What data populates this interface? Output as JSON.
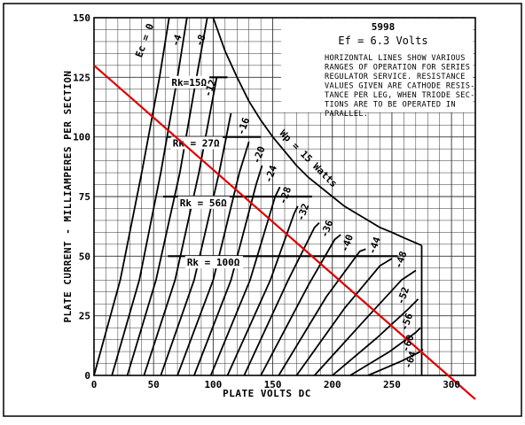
{
  "chart_data": {
    "type": "line",
    "tube_type": "5998",
    "heater": "Ef = 6.3 Volts",
    "xlabel": "PLATE VOLTS DC",
    "ylabel": "PLATE CURRENT - MILLIAMPERES PER SECTION",
    "xlim": [
      0,
      320
    ],
    "ylim": [
      0,
      150
    ],
    "x_ticks": [
      0,
      50,
      100,
      150,
      200,
      250,
      300
    ],
    "y_ticks": [
      0,
      25,
      50,
      75,
      100,
      125,
      150
    ],
    "grid": true,
    "note_lines": [
      "HORIZONTAL LINES SHOW VARIOUS",
      "RANGES OF OPERATION FOR SERIES",
      "REGULATOR SERVICE. RESISTANCE",
      "VALUES GIVEN ARE CATHODE RESIS-",
      "TANCE PER LEG, WHEN TRIODE SEC-",
      "TIONS ARE TO BE OPERATED IN",
      "PARALLEL."
    ],
    "grid_curves": [
      {
        "label": "Ec = 0",
        "points": [
          [
            0,
            0
          ],
          [
            22,
            40
          ],
          [
            40,
            85
          ],
          [
            55,
            125
          ],
          [
            63,
            150
          ]
        ]
      },
      {
        "label": "-4",
        "points": [
          [
            15,
            0
          ],
          [
            38,
            40
          ],
          [
            56,
            85
          ],
          [
            70,
            125
          ],
          [
            78,
            150
          ]
        ]
      },
      {
        "label": "-8",
        "points": [
          [
            28,
            0
          ],
          [
            52,
            40
          ],
          [
            72,
            85
          ],
          [
            86,
            125
          ],
          [
            95,
            150
          ]
        ]
      },
      {
        "label": "-12",
        "points": [
          [
            42,
            0
          ],
          [
            68,
            40
          ],
          [
            88,
            85
          ],
          [
            103,
            125
          ]
        ]
      },
      {
        "label": "-16",
        "points": [
          [
            56,
            0
          ],
          [
            84,
            40
          ],
          [
            105,
            85
          ],
          [
            115,
            110
          ]
        ]
      },
      {
        "label": "-20",
        "points": [
          [
            70,
            0
          ],
          [
            100,
            40
          ],
          [
            122,
            85
          ],
          [
            130,
            98
          ]
        ]
      },
      {
        "label": "-24",
        "points": [
          [
            84,
            0
          ],
          [
            115,
            40
          ],
          [
            136,
            80
          ],
          [
            141,
            88
          ]
        ]
      },
      {
        "label": "-28",
        "points": [
          [
            98,
            0
          ],
          [
            131,
            40
          ],
          [
            152,
            75
          ],
          [
            156,
            79
          ]
        ]
      },
      {
        "label": "-32",
        "points": [
          [
            112,
            0
          ],
          [
            148,
            40
          ],
          [
            168,
            68
          ],
          [
            171,
            71
          ]
        ]
      },
      {
        "label": "-36",
        "points": [
          [
            126,
            0
          ],
          [
            163,
            40
          ],
          [
            185,
            62
          ],
          [
            189,
            64
          ]
        ]
      },
      {
        "label": "-40",
        "points": [
          [
            140,
            0
          ],
          [
            180,
            38
          ],
          [
            202,
            57
          ],
          [
            207,
            59
          ]
        ]
      },
      {
        "label": "-44",
        "points": [
          [
            155,
            0
          ],
          [
            195,
            33
          ],
          [
            223,
            52
          ],
          [
            228,
            53
          ]
        ]
      },
      {
        "label": "-48",
        "points": [
          [
            170,
            0
          ],
          [
            210,
            28
          ],
          [
            240,
            46
          ],
          [
            250,
            49
          ]
        ]
      },
      {
        "label": "-52",
        "points": [
          [
            185,
            0
          ],
          [
            225,
            22
          ],
          [
            258,
            40
          ],
          [
            270,
            44
          ]
        ]
      },
      {
        "label": "-56",
        "points": [
          [
            200,
            0
          ],
          [
            238,
            16
          ],
          [
            264,
            28
          ],
          [
            272,
            32
          ]
        ]
      },
      {
        "label": "-60",
        "points": [
          [
            215,
            0
          ],
          [
            248,
            10
          ],
          [
            270,
            18
          ],
          [
            274,
            20
          ]
        ]
      },
      {
        "label": "-64",
        "points": [
          [
            230,
            0
          ],
          [
            258,
            6
          ],
          [
            274,
            10
          ],
          [
            276,
            11
          ]
        ]
      }
    ],
    "curve_labels": [
      {
        "text": "Ec = 0",
        "x": 45,
        "y": 140,
        "rotate": -70
      },
      {
        "text": "-4",
        "x": 72,
        "y": 140,
        "rotate": -70
      },
      {
        "text": "-8",
        "x": 92,
        "y": 140,
        "rotate": -70
      },
      {
        "text": "-12",
        "x": 100,
        "y": 120,
        "rotate": -70
      },
      {
        "text": "-16",
        "x": 128,
        "y": 104,
        "rotate": -70
      },
      {
        "text": "-20",
        "x": 141,
        "y": 92,
        "rotate": -70
      },
      {
        "text": "-24",
        "x": 151,
        "y": 84,
        "rotate": -70
      },
      {
        "text": "-28",
        "x": 163,
        "y": 75,
        "rotate": -70
      },
      {
        "text": "-32",
        "x": 178,
        "y": 68,
        "rotate": -70
      },
      {
        "text": "-36",
        "x": 198,
        "y": 61,
        "rotate": -70
      },
      {
        "text": "-40",
        "x": 215,
        "y": 55,
        "rotate": -70
      },
      {
        "text": "-44",
        "x": 238,
        "y": 54,
        "rotate": -70
      },
      {
        "text": "-48",
        "x": 260,
        "y": 48,
        "rotate": -70
      },
      {
        "text": "-52",
        "x": 262,
        "y": 33,
        "rotate": -70
      },
      {
        "text": "-56",
        "x": 265,
        "y": 22,
        "rotate": -70
      },
      {
        "text": "-60",
        "x": 266,
        "y": 13,
        "rotate": -70
      },
      {
        "text": "-64",
        "x": 268,
        "y": 6,
        "rotate": -70
      }
    ],
    "power_limit": {
      "label": "Wp = 15 Watts",
      "label_position": {
        "x": 178,
        "y": 90,
        "rotate": 45
      },
      "points": [
        [
          100,
          150
        ],
        [
          110,
          136
        ],
        [
          120,
          125
        ],
        [
          130,
          115
        ],
        [
          140,
          107
        ],
        [
          150,
          100
        ],
        [
          160,
          94
        ],
        [
          170,
          88
        ],
        [
          180,
          83
        ],
        [
          190,
          79
        ],
        [
          200,
          75
        ],
        [
          210,
          71
        ],
        [
          220,
          68
        ],
        [
          230,
          65
        ],
        [
          240,
          62
        ],
        [
          250,
          60
        ],
        [
          260,
          57.7
        ],
        [
          275,
          54.5
        ]
      ]
    },
    "boundary": {
      "points": [
        [
          275,
          54.5
        ],
        [
          275,
          0
        ]
      ]
    },
    "regulator_lines": [
      {
        "label": "Rk=15Ω",
        "y": 125,
        "x1": 68,
        "x2": 112,
        "label_x": 65,
        "label_y": 121.5
      },
      {
        "label": "Rk = 27Ω",
        "y": 100,
        "x1": 62,
        "x2": 140,
        "label_x": 66,
        "label_y": 96
      },
      {
        "label": "Rk = 56Ω",
        "y": 75,
        "x1": 58,
        "x2": 183,
        "label_x": 72,
        "label_y": 71
      },
      {
        "label": "Rk = 100Ω",
        "y": 50,
        "x1": 62,
        "x2": 255,
        "label_x": 78,
        "label_y": 46
      }
    ],
    "load_line": {
      "color": "#dd0000",
      "points": [
        [
          0,
          130
        ],
        [
          320,
          -10
        ]
      ]
    }
  }
}
